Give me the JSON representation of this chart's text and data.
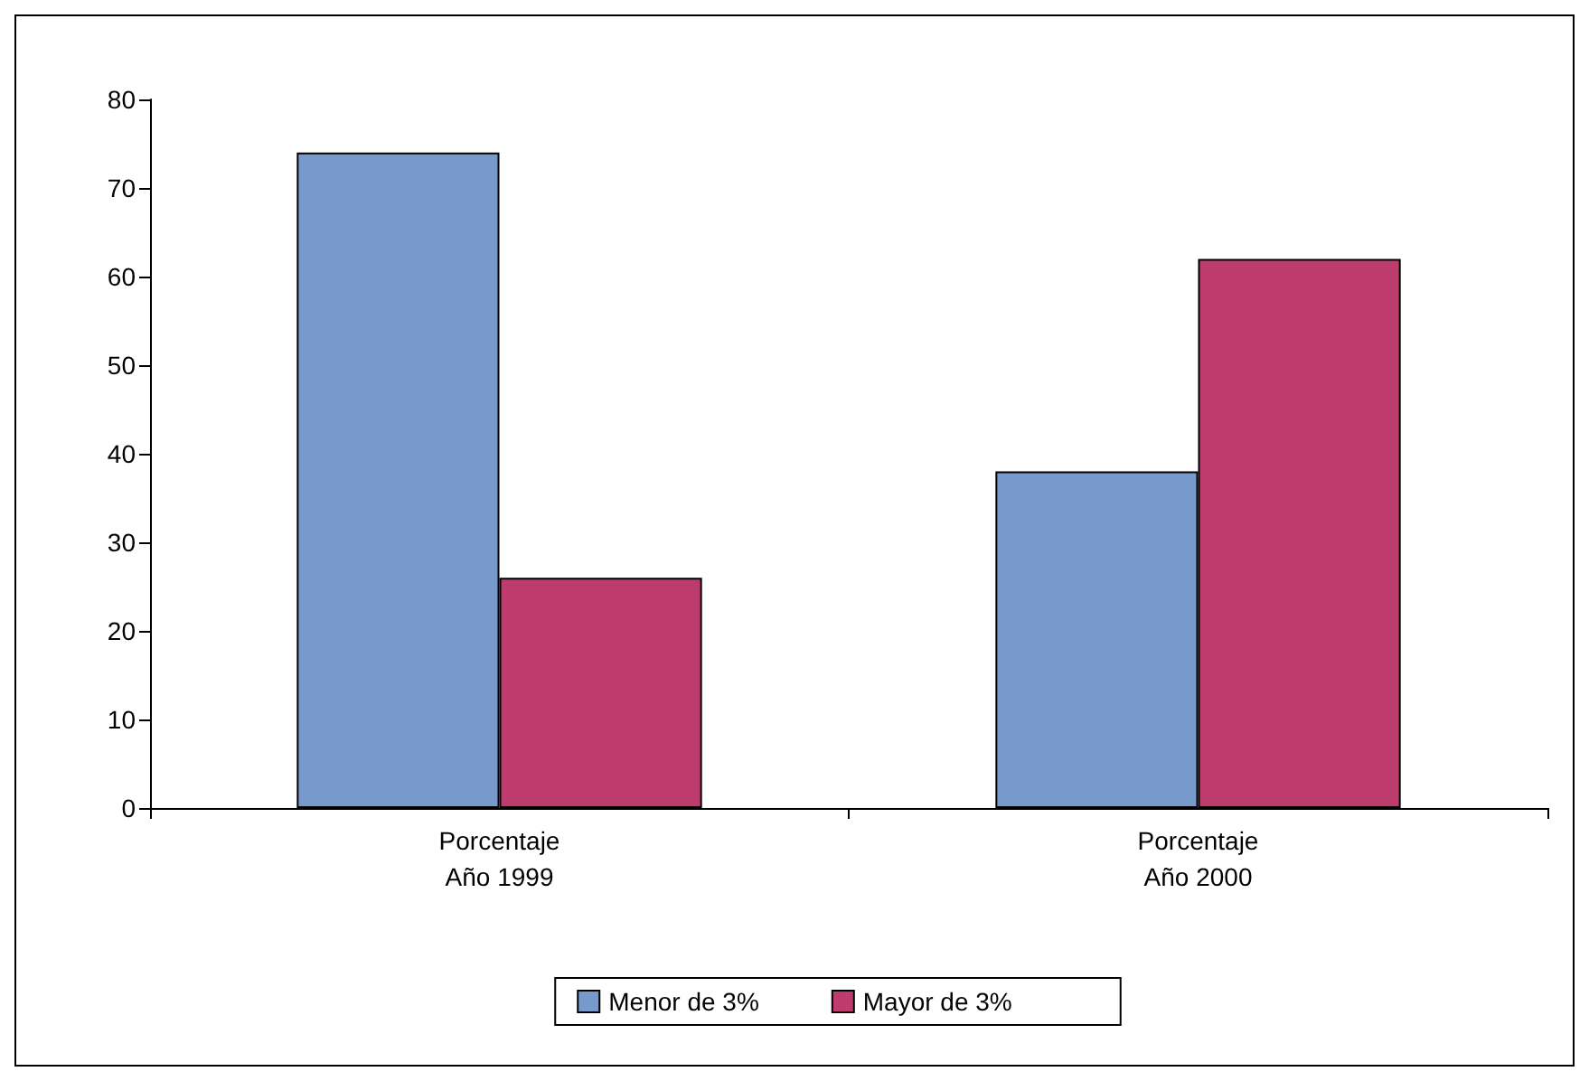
{
  "chart_data": {
    "type": "bar",
    "categories": [
      "Porcentaje\nAño 1999",
      "Porcentaje\nAño 2000"
    ],
    "series": [
      {
        "name": "Menor de 3%",
        "color": "#7799cc",
        "values": [
          74,
          38
        ]
      },
      {
        "name": "Mayor de 3%",
        "color": "#be3b6e",
        "values": [
          26,
          62
        ]
      }
    ],
    "ylim": [
      0,
      80
    ],
    "yticks": [
      0,
      10,
      20,
      30,
      40,
      50,
      60,
      70,
      80
    ],
    "grid": false,
    "legend": "bottom"
  }
}
